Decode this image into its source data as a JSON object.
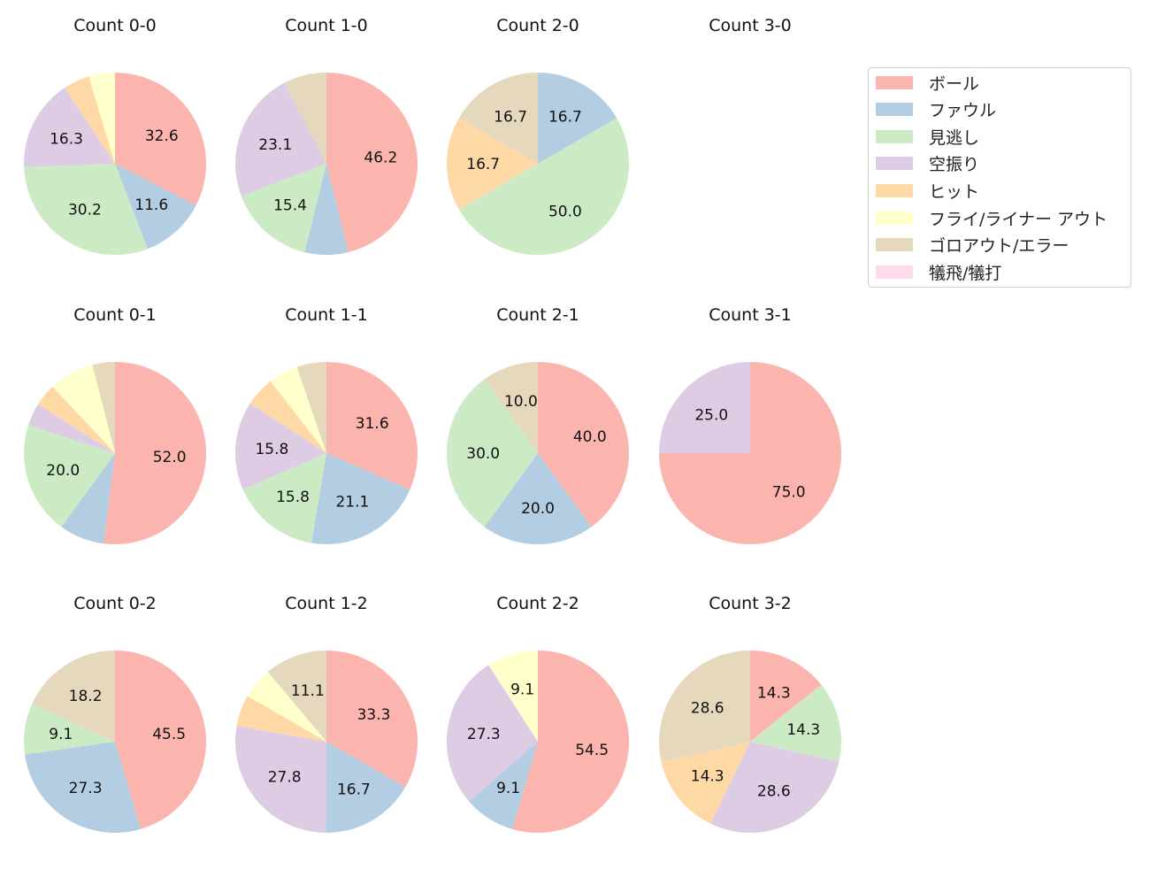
{
  "chart_data": {
    "type": "pie",
    "categories": [
      "ボール",
      "ファウル",
      "見逃し",
      "空振り",
      "ヒット",
      "フライ/ライナー アウト",
      "ゴロアウト/エラー",
      "犠飛/犠打"
    ],
    "colors": [
      "#fbb4ae",
      "#b3cde3",
      "#ccebc5",
      "#decbe4",
      "#fed9a6",
      "#ffffcc",
      "#e5d8bd",
      "#fddaec"
    ],
    "legend_position": "right",
    "charts": [
      {
        "title": "Count 0-0",
        "values": [
          14,
          5,
          13,
          7,
          2,
          2,
          0,
          0
        ]
      },
      {
        "title": "Count 1-0",
        "values": [
          6,
          1,
          2,
          3,
          0,
          0,
          1,
          0
        ]
      },
      {
        "title": "Count 2-0",
        "values": [
          0,
          1,
          3,
          0,
          1,
          0,
          1,
          0
        ]
      },
      {
        "title": "Count 3-0",
        "values": [
          0,
          0,
          0,
          0,
          0,
          0,
          0,
          0
        ]
      },
      {
        "title": "Count 0-1",
        "values": [
          13,
          2,
          5,
          1,
          1,
          2,
          1,
          0
        ]
      },
      {
        "title": "Count 1-1",
        "values": [
          6,
          4,
          3,
          3,
          1,
          1,
          1,
          0
        ]
      },
      {
        "title": "Count 2-1",
        "values": [
          4,
          2,
          3,
          0,
          0,
          0,
          1,
          0
        ]
      },
      {
        "title": "Count 3-1",
        "values": [
          3,
          0,
          0,
          1,
          0,
          0,
          0,
          0
        ]
      },
      {
        "title": "Count 0-2",
        "values": [
          5,
          3,
          1,
          0,
          0,
          0,
          2,
          0
        ]
      },
      {
        "title": "Count 1-2",
        "values": [
          6,
          3,
          0,
          5,
          1,
          1,
          2,
          0
        ]
      },
      {
        "title": "Count 2-2",
        "values": [
          6,
          1,
          0,
          3,
          0,
          1,
          0,
          0
        ]
      },
      {
        "title": "Count 3-2",
        "values": [
          1,
          0,
          1,
          2,
          1,
          0,
          2,
          0
        ]
      }
    ]
  }
}
